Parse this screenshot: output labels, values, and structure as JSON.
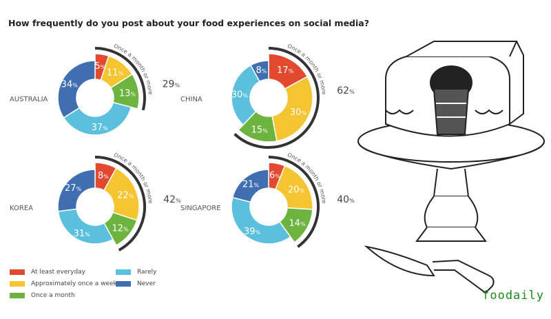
{
  "chart_data": {
    "type": "pie",
    "title": "How frequently do you post about your food experiences on social media?",
    "categories": [
      "At least everyday",
      "Approximately once a week",
      "Once a month",
      "Rarely",
      "Never"
    ],
    "colors": [
      "#e2492f",
      "#f5c431",
      "#6db33f",
      "#5bc0de",
      "#3f6fb0"
    ],
    "group_label": "Once a month or more",
    "percent_sign": "%",
    "series": [
      {
        "name": "AUSTRALIA",
        "values": [
          5,
          11,
          13,
          37,
          34
        ],
        "group_total": "29"
      },
      {
        "name": "CHINA",
        "values": [
          17,
          30,
          15,
          30,
          8
        ],
        "group_total": "62"
      },
      {
        "name": "KOREA",
        "values": [
          8,
          22,
          12,
          31,
          27
        ],
        "group_total": "42"
      },
      {
        "name": "SINGAPORE",
        "values": [
          6,
          20,
          14,
          39,
          21
        ],
        "group_total": "40"
      }
    ],
    "legend_position": "bottom-left"
  },
  "brand": "foodaily"
}
